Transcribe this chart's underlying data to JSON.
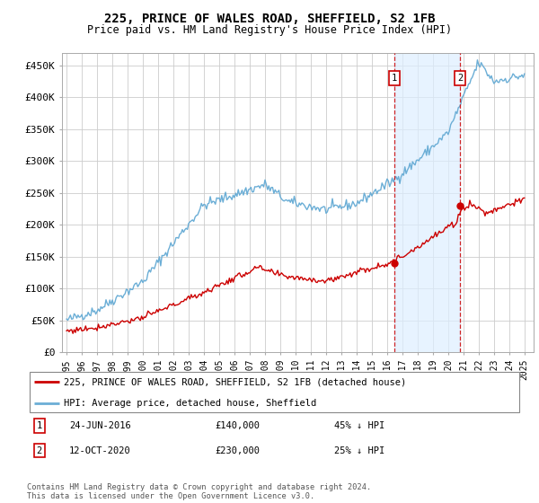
{
  "title": "225, PRINCE OF WALES ROAD, SHEFFIELD, S2 1FB",
  "subtitle": "Price paid vs. HM Land Registry's House Price Index (HPI)",
  "ylabel_ticks": [
    "£0",
    "£50K",
    "£100K",
    "£150K",
    "£200K",
    "£250K",
    "£300K",
    "£350K",
    "£400K",
    "£450K"
  ],
  "ytick_values": [
    0,
    50000,
    100000,
    150000,
    200000,
    250000,
    300000,
    350000,
    400000,
    450000
  ],
  "ylim": [
    0,
    470000
  ],
  "xlim_start": 1994.7,
  "xlim_end": 2025.6,
  "hpi_color": "#6baed6",
  "hpi_fill_color": "#ddeeff",
  "price_color": "#cc0000",
  "marker1_date": 2016.47,
  "marker1_price": 140000,
  "marker2_date": 2020.78,
  "marker2_price": 230000,
  "legend1": "225, PRINCE OF WALES ROAD, SHEFFIELD, S2 1FB (detached house)",
  "legend2": "HPI: Average price, detached house, Sheffield",
  "note1_date": "24-JUN-2016",
  "note1_price": "£140,000",
  "note1_hpi": "45% ↓ HPI",
  "note2_date": "12-OCT-2020",
  "note2_price": "£230,000",
  "note2_hpi": "25% ↓ HPI",
  "footer": "Contains HM Land Registry data © Crown copyright and database right 2024.\nThis data is licensed under the Open Government Licence v3.0.",
  "background_color": "#ffffff",
  "grid_color": "#cccccc"
}
